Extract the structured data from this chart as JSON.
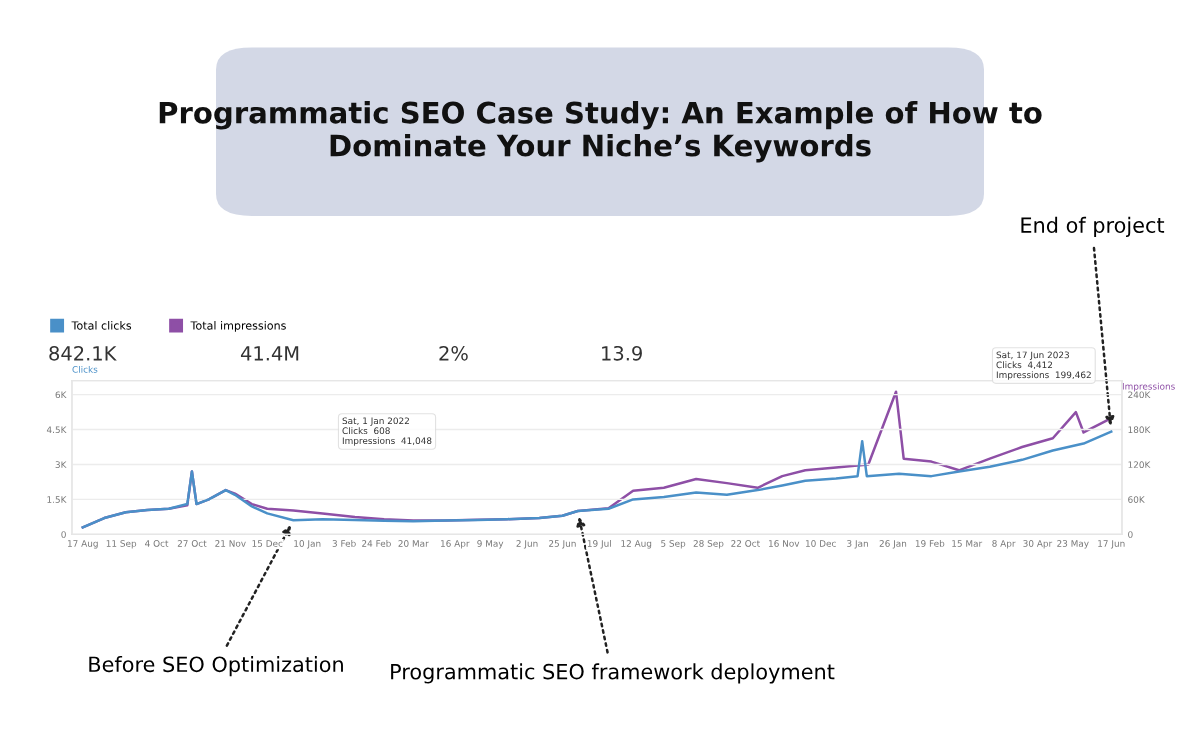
{
  "chart_data": {
    "type": "line",
    "title": "Programmatic SEO Case Study: An Example of How to Dominate Your Niche’s Keywords",
    "ylabel": "Clicks",
    "y2label": "Impressions",
    "series": [
      {
        "name": "Total clicks",
        "color": "#4a90c8",
        "axis": "y",
        "x": [
          "2021-08-17",
          "2021-08-31",
          "2021-09-14",
          "2021-09-28",
          "2021-10-12",
          "2021-10-24",
          "2021-10-27",
          "2021-10-30",
          "2021-11-07",
          "2021-11-18",
          "2021-11-24",
          "2021-12-05",
          "2021-12-15",
          "2022-01-01",
          "2022-01-20",
          "2022-02-10",
          "2022-03-01",
          "2022-03-20",
          "2022-04-10",
          "2022-05-01",
          "2022-05-20",
          "2022-06-10",
          "2022-06-25",
          "2022-07-05",
          "2022-07-25",
          "2022-08-10",
          "2022-08-30",
          "2022-09-20",
          "2022-10-10",
          "2022-10-30",
          "2022-11-15",
          "2022-11-30",
          "2022-12-20",
          "2023-01-03",
          "2023-01-06",
          "2023-01-09",
          "2023-01-30",
          "2023-02-20",
          "2023-03-10",
          "2023-03-30",
          "2023-04-20",
          "2023-05-10",
          "2023-05-30",
          "2023-06-17"
        ],
        "values": [
          300,
          700,
          950,
          1050,
          1100,
          1300,
          2700,
          1300,
          1500,
          1900,
          1700,
          1200,
          900,
          608,
          650,
          620,
          580,
          560,
          600,
          620,
          650,
          700,
          800,
          1000,
          1100,
          1500,
          1600,
          1800,
          1700,
          1900,
          2100,
          2300,
          2400,
          2500,
          4000,
          2500,
          2600,
          2500,
          2700,
          2900,
          3200,
          3600,
          3900,
          4412
        ]
      },
      {
        "name": "Total impressions",
        "color": "#8e4fa6",
        "axis": "y2",
        "x": [
          "2021-08-17",
          "2021-08-31",
          "2021-09-14",
          "2021-09-28",
          "2021-10-12",
          "2021-10-24",
          "2021-10-27",
          "2021-10-30",
          "2021-11-07",
          "2021-11-18",
          "2021-11-24",
          "2021-12-05",
          "2021-12-15",
          "2022-01-01",
          "2022-01-20",
          "2022-02-10",
          "2022-03-01",
          "2022-03-20",
          "2022-04-10",
          "2022-05-01",
          "2022-05-20",
          "2022-06-10",
          "2022-06-25",
          "2022-07-05",
          "2022-07-25",
          "2022-08-10",
          "2022-08-30",
          "2022-09-20",
          "2022-10-10",
          "2022-10-30",
          "2022-11-15",
          "2022-11-30",
          "2022-12-20",
          "2023-01-10",
          "2023-01-28",
          "2023-02-02",
          "2023-02-20",
          "2023-03-10",
          "2023-03-30",
          "2023-04-20",
          "2023-05-10",
          "2023-05-25",
          "2023-05-30",
          "2023-06-17"
        ],
        "values": [
          12000,
          28000,
          38000,
          42000,
          44000,
          50000,
          108000,
          52000,
          60000,
          76000,
          70000,
          52000,
          44000,
          41048,
          36000,
          30000,
          26000,
          24000,
          24000,
          25000,
          26000,
          28000,
          32000,
          40000,
          45000,
          75000,
          80000,
          95000,
          88000,
          80000,
          100000,
          110000,
          115000,
          120000,
          245000,
          130000,
          125000,
          110000,
          130000,
          150000,
          165000,
          210000,
          175000,
          199462
        ]
      }
    ],
    "xlim": [
      "2021-08-10",
      "2023-06-24"
    ],
    "xticks": [
      {
        "value": "2021-08-17",
        "label": "17 Aug"
      },
      {
        "value": "2021-09-11",
        "label": "11 Sep"
      },
      {
        "value": "2021-10-04",
        "label": "4 Oct"
      },
      {
        "value": "2021-10-27",
        "label": "27 Oct"
      },
      {
        "value": "2021-11-21",
        "label": "21 Nov"
      },
      {
        "value": "2021-12-15",
        "label": "15 Dec"
      },
      {
        "value": "2022-01-10",
        "label": "10 Jan"
      },
      {
        "value": "2022-02-03",
        "label": "3 Feb"
      },
      {
        "value": "2022-02-24",
        "label": "24 Feb"
      },
      {
        "value": "2022-03-20",
        "label": "20 Mar"
      },
      {
        "value": "2022-04-16",
        "label": "16 Apr"
      },
      {
        "value": "2022-05-09",
        "label": "9 May"
      },
      {
        "value": "2022-06-02",
        "label": "2 Jun"
      },
      {
        "value": "2022-06-25",
        "label": "25 Jun"
      },
      {
        "value": "2022-07-19",
        "label": "19 Jul"
      },
      {
        "value": "2022-08-12",
        "label": "12 Aug"
      },
      {
        "value": "2022-09-05",
        "label": "5 Sep"
      },
      {
        "value": "2022-09-28",
        "label": "28 Sep"
      },
      {
        "value": "2022-10-22",
        "label": "22 Oct"
      },
      {
        "value": "2022-11-16",
        "label": "16 Nov"
      },
      {
        "value": "2022-12-10",
        "label": "10 Dec"
      },
      {
        "value": "2023-01-03",
        "label": "3 Jan"
      },
      {
        "value": "2023-01-26",
        "label": "26 Jan"
      },
      {
        "value": "2023-02-19",
        "label": "19 Feb"
      },
      {
        "value": "2023-03-15",
        "label": "15 Mar"
      },
      {
        "value": "2023-04-08",
        "label": "8 Apr"
      },
      {
        "value": "2023-04-30",
        "label": "30 Apr"
      },
      {
        "value": "2023-05-23",
        "label": "23 May"
      },
      {
        "value": "2023-06-17",
        "label": "17 Jun"
      }
    ],
    "ylim": [
      0,
      6600
    ],
    "yticks": [
      0,
      {
        "value": 1500,
        "label": "1.5K"
      },
      {
        "value": 3000,
        "label": "3K"
      },
      {
        "value": 4500,
        "label": "4.5K"
      },
      {
        "value": 6000,
        "label": "6K"
      }
    ],
    "y2lim": [
      0,
      264000
    ],
    "y2ticks": [
      0,
      {
        "value": 60000,
        "label": "60K"
      },
      {
        "value": 120000,
        "label": "120K"
      },
      {
        "value": 180000,
        "label": "180K"
      },
      {
        "value": 240000,
        "label": "240K"
      }
    ],
    "grid": "y",
    "legend": "top left",
    "marker": "none",
    "line_style": "solid",
    "annotations": [
      {
        "text": "Before SEO Optimization",
        "x": "2022-01-01",
        "y": 608
      },
      {
        "text": "Programmatic SEO framework deployment",
        "x": "2022-07-05",
        "y": 1000
      },
      {
        "text": "End of project",
        "x": "2023-06-17",
        "y": 4412
      },
      "842.1K",
      "41.4M",
      "2%",
      "13.9",
      "Sat, 1 Jan 2022\nClicks  608\nImpressions  41,048",
      "Sat, 17 Jun 2023\nClicks  4,412\nImpressions  199,462"
    ]
  }
}
